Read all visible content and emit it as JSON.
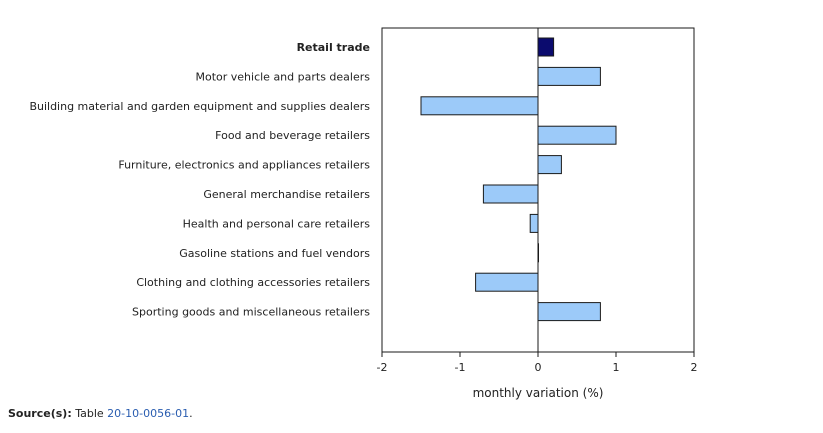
{
  "chart_data": {
    "type": "bar",
    "orientation": "horizontal",
    "categories": [
      "Retail trade",
      "Motor vehicle and parts dealers",
      "Building material and garden equipment and supplies dealers",
      "Food and beverage retailers",
      "Furniture, electronics and appliances retailers",
      "General merchandise retailers",
      "Health and personal care retailers",
      "Gasoline stations and fuel vendors",
      "Clothing and clothing accessories retailers",
      "Sporting goods and miscellaneous retailers"
    ],
    "values": [
      0.2,
      0.8,
      -1.5,
      1.0,
      0.3,
      -0.7,
      -0.1,
      0.0,
      -0.8,
      0.8
    ],
    "highlight_index": 0,
    "xlabel": "monthly variation (%)",
    "xlim": [
      -2,
      2
    ],
    "xticks": [
      -2,
      -1,
      0,
      1,
      2
    ],
    "grid": false,
    "colors": {
      "highlight": "#0b0b6e",
      "bar": "#9ccaf9",
      "stroke": "#1a1a1a"
    }
  },
  "source": {
    "label": "Source(s):",
    "prefix": "Table ",
    "link_text": "20-10-0056-01",
    "suffix": "."
  }
}
